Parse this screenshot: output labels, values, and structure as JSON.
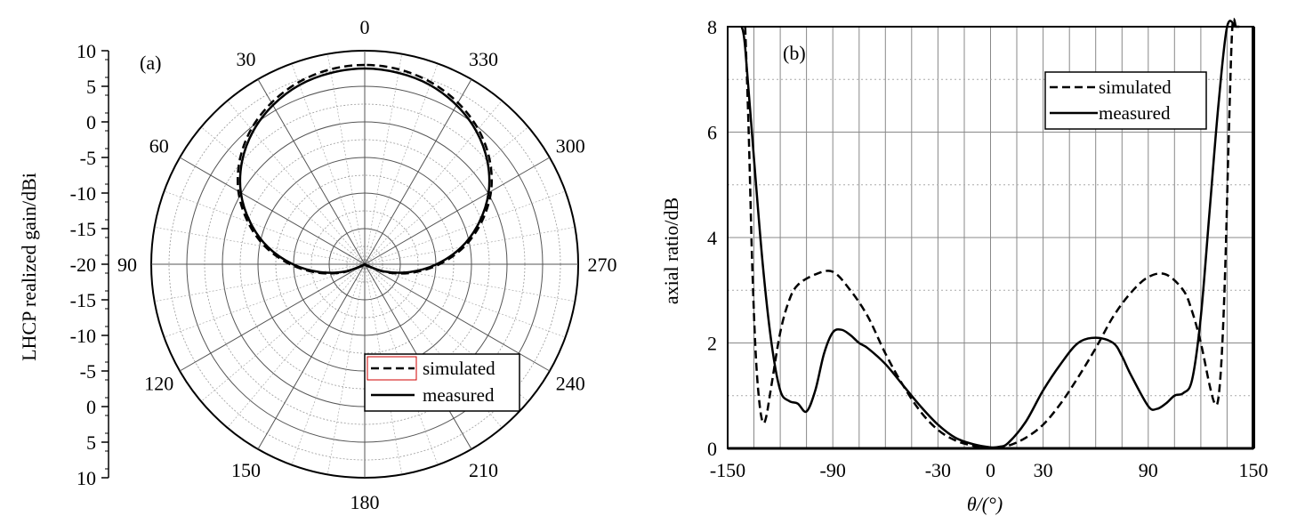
{
  "chart_data": [
    {
      "type": "polar",
      "panel_label": "(a)",
      "ylabel": "LHCP realized gain/dBi",
      "radial_ticks": [
        "10",
        "5",
        "0",
        "-5",
        "-10",
        "-15",
        "-20",
        "-15",
        "-10",
        "-5",
        "0",
        "5",
        "10"
      ],
      "radial_range": [
        -20,
        10
      ],
      "angle_labels": [
        "0",
        "30",
        "60",
        "90",
        "120",
        "150",
        "180",
        "210",
        "240",
        "270",
        "300",
        "330"
      ],
      "angle_direction": "counterclockwise",
      "legend": {
        "position": "bottom-right",
        "entries": [
          "simulated",
          "measured"
        ]
      },
      "series": [
        {
          "name": "simulated",
          "style": "dashed",
          "theta_deg": [
            0,
            10,
            20,
            30,
            40,
            50,
            60,
            70,
            80,
            90,
            100,
            110,
            120,
            130,
            140,
            150,
            160,
            170,
            180,
            190,
            200,
            210,
            220,
            230,
            240,
            250,
            260,
            270,
            280,
            290,
            300,
            310,
            320,
            330,
            340,
            350
          ],
          "gain_dbi": [
            8.0,
            7.8,
            7.2,
            6.2,
            4.8,
            2.9,
            0.5,
            -2.5,
            -5.8,
            -9.5,
            -13.2,
            -16.6,
            -19.4,
            -21.5,
            -22.9,
            -23.7,
            -24.2,
            -24.5,
            -24.6,
            -24.5,
            -24.2,
            -23.7,
            -22.9,
            -21.5,
            -19.4,
            -16.6,
            -13.2,
            -9.5,
            -5.8,
            -2.5,
            0.5,
            2.9,
            4.8,
            6.2,
            7.2,
            7.8
          ]
        },
        {
          "name": "measured",
          "style": "solid",
          "theta_deg": [
            0,
            10,
            20,
            30,
            40,
            50,
            60,
            70,
            80,
            90,
            100,
            110,
            120,
            130,
            140,
            150,
            160,
            170,
            180,
            190,
            200,
            210,
            220,
            230,
            240,
            250,
            260,
            270,
            280,
            290,
            300,
            310,
            320,
            330,
            340,
            350
          ],
          "gain_dbi": [
            7.5,
            7.3,
            6.8,
            5.8,
            4.4,
            2.5,
            0.1,
            -2.9,
            -6.2,
            -9.9,
            -13.6,
            -17.0,
            -19.8,
            -21.9,
            -23.3,
            -24.0,
            -24.5,
            -24.8,
            -24.9,
            -24.8,
            -24.5,
            -24.0,
            -23.3,
            -21.9,
            -19.8,
            -17.0,
            -13.6,
            -9.9,
            -6.2,
            -2.9,
            0.1,
            2.5,
            4.4,
            5.8,
            6.8,
            7.3
          ]
        }
      ]
    },
    {
      "type": "line",
      "panel_label": "(b)",
      "xlabel": "θ/(°)",
      "ylabel": "axial ratio/dB",
      "xlim": [
        -150,
        150
      ],
      "ylim": [
        0,
        8
      ],
      "xticks": [
        "-150",
        "-90",
        "-30",
        "0",
        "30",
        "90",
        "150"
      ],
      "xtick_values": [
        -150,
        -90,
        -30,
        0,
        30,
        90,
        150
      ],
      "yticks": [
        "0",
        "2",
        "4",
        "6",
        "8"
      ],
      "ytick_values": [
        0,
        2,
        4,
        6,
        8
      ],
      "grid": true,
      "legend": {
        "position": "top-right",
        "entries": [
          "simulated",
          "measured"
        ]
      },
      "series": [
        {
          "name": "simulated",
          "style": "dashed",
          "x": [
            -140,
            -138,
            -136,
            -134,
            -132,
            -130,
            -128,
            -125,
            -120,
            -115,
            -110,
            -100,
            -90,
            -80,
            -70,
            -60,
            -50,
            -40,
            -30,
            -20,
            -10,
            0,
            10,
            20,
            30,
            40,
            50,
            60,
            70,
            80,
            90,
            100,
            110,
            115,
            120,
            125,
            128,
            130,
            132,
            134,
            136,
            138,
            140
          ],
          "y": [
            8.0,
            6.0,
            3.5,
            1.8,
            0.9,
            0.5,
            0.6,
            1.2,
            2.2,
            2.8,
            3.1,
            3.3,
            3.35,
            3.0,
            2.5,
            1.8,
            1.2,
            0.7,
            0.35,
            0.15,
            0.05,
            0.0,
            0.05,
            0.2,
            0.45,
            0.85,
            1.35,
            1.9,
            2.5,
            2.95,
            3.25,
            3.3,
            3.0,
            2.6,
            2.0,
            1.2,
            0.85,
            0.95,
            1.8,
            3.5,
            6.0,
            8.0,
            8.0
          ]
        },
        {
          "name": "measured",
          "style": "solid",
          "x": [
            -142,
            -140,
            -135,
            -130,
            -125,
            -120,
            -115,
            -110,
            -105,
            -100,
            -95,
            -90,
            -85,
            -80,
            -75,
            -70,
            -60,
            -50,
            -40,
            -30,
            -20,
            -10,
            0,
            5,
            10,
            20,
            30,
            40,
            50,
            60,
            70,
            75,
            80,
            90,
            95,
            100,
            105,
            110,
            115,
            120,
            125,
            130,
            135,
            140,
            142
          ],
          "y": [
            8.0,
            7.6,
            5.5,
            3.5,
            2.0,
            1.1,
            0.9,
            0.85,
            0.7,
            1.1,
            1.8,
            2.2,
            2.25,
            2.15,
            2.0,
            1.9,
            1.6,
            1.2,
            0.8,
            0.45,
            0.2,
            0.08,
            0.02,
            0.03,
            0.1,
            0.5,
            1.1,
            1.6,
            2.0,
            2.1,
            2.0,
            1.75,
            1.4,
            0.8,
            0.75,
            0.85,
            1.0,
            1.05,
            1.3,
            2.5,
            4.5,
            6.5,
            8.0,
            8.0,
            8.0
          ]
        }
      ]
    }
  ]
}
